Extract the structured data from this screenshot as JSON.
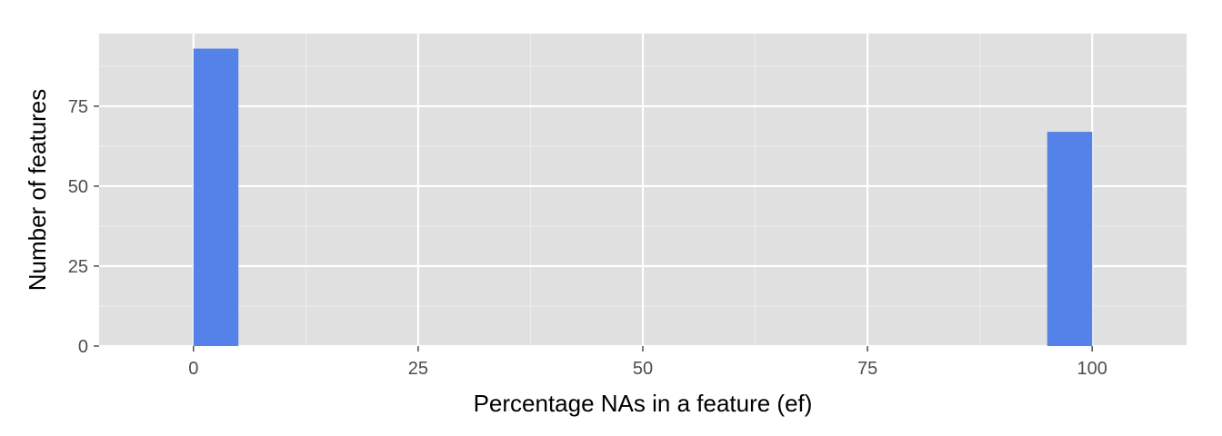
{
  "chart_data": {
    "type": "bar",
    "title": "",
    "xlabel": "Percentage NAs in a feature (ef)",
    "ylabel": "Number of features",
    "xlim": [
      -10.5,
      110.5
    ],
    "ylim": [
      0,
      97.7
    ],
    "x_ticks": [
      0,
      25,
      50,
      75,
      100
    ],
    "x_tick_labels": [
      "0",
      "25",
      "50",
      "75",
      "100"
    ],
    "y_ticks": [
      0,
      25,
      50,
      75
    ],
    "y_tick_labels": [
      "0",
      "25",
      "50",
      "75"
    ],
    "bin_width": 5,
    "bars": [
      {
        "x_start": 0,
        "x_end": 5,
        "value": 93
      },
      {
        "x_start": 95,
        "x_end": 100,
        "value": 67
      }
    ],
    "grid": true,
    "legend": "none",
    "colors": {
      "bar": "#5482E8",
      "panel_background": "#E0E0E0",
      "grid_major": "#FFFFFF",
      "grid_minor": "#EEEEEE",
      "tick_label": "#4D4D4D",
      "axis_title": "#000000"
    }
  }
}
